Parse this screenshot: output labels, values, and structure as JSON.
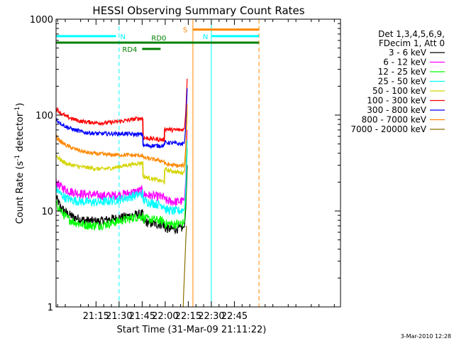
{
  "chart_data": {
    "type": "line",
    "title": "HESSI Observing Summary Count Rates",
    "xlabel": "Start Time (31-Mar-09 21:11:22)",
    "ylabel": "Count Rate (s⁻¹ detector⁻¹)",
    "ylabel_main": "Count Rate (s",
    "ylabel_sup1": "-1",
    "ylabel_mid": " detector",
    "ylabel_sup2": "-1",
    "ylabel_end": ")",
    "yscale": "log",
    "ylim": [
      1,
      1000
    ],
    "xlim_min": [
      -131,
      54
    ],
    "y_ticks": [
      {
        "value": 1,
        "label": "1"
      },
      {
        "value": 10,
        "label": "10"
      },
      {
        "value": 100,
        "label": "100"
      },
      {
        "value": 1000,
        "label": "1000"
      }
    ],
    "x_ticks": [
      {
        "min": -105,
        "label": "21:15"
      },
      {
        "min": -90,
        "label": "21:30"
      },
      {
        "min": -75,
        "label": "21:45"
      },
      {
        "min": -60,
        "label": "22:00"
      },
      {
        "min": -45,
        "label": "22:15"
      },
      {
        "min": -30,
        "label": "22:30"
      },
      {
        "min": -15,
        "label": "22:45"
      }
    ],
    "legend": {
      "placement": "right",
      "header": [
        "Det 1,3,4,5,6,9,",
        "FDecim 1, Att 0"
      ]
    },
    "series": [
      {
        "name": "3 - 6 keV",
        "color": "#000000",
        "x": [
          -131,
          -128,
          -124,
          -120,
          -116,
          -112,
          -108,
          -104,
          -100,
          -95,
          -90,
          -85,
          -80,
          -74.5,
          -74.5,
          -70,
          -65,
          -60.5,
          -60.5,
          -55,
          -50,
          -47.5,
          -46.6,
          -45.7
        ],
        "y": [
          14,
          11,
          9.5,
          8.7,
          8.3,
          8,
          7.9,
          7.8,
          8,
          8.3,
          8.5,
          8.8,
          9.1,
          9.4,
          7.8,
          7.5,
          7.3,
          7.2,
          6.6,
          6.5,
          6.6,
          6.8,
          11,
          30
        ]
      },
      {
        "name": "6 - 12 keV",
        "color": "#ff00ff",
        "x": [
          -131,
          -128,
          -124,
          -120,
          -116,
          -112,
          -108,
          -104,
          -100,
          -95,
          -90,
          -85,
          -80,
          -74.5,
          -74.5,
          -70,
          -65,
          -60.5,
          -60.5,
          -55,
          -50,
          -47.5,
          -46.6,
          -45.7
        ],
        "y": [
          20,
          18,
          16.5,
          15.8,
          15.3,
          15,
          14.8,
          14.6,
          14.5,
          14.5,
          14.8,
          15.2,
          15.8,
          16.5,
          15,
          14.5,
          14.2,
          14,
          13,
          12.5,
          12.6,
          13,
          22,
          70
        ]
      },
      {
        "name": "12 - 25 keV",
        "color": "#00ff00",
        "x": [
          -131,
          -128,
          -124,
          -120,
          -116,
          -112,
          -108,
          -104,
          -100,
          -95,
          -90,
          -85,
          -80,
          -74.5,
          -74.5,
          -70,
          -65,
          -60.5,
          -60.5,
          -55,
          -50,
          -47.5,
          -46.6,
          -45.7
        ],
        "y": [
          12,
          10,
          8.5,
          7.8,
          7.4,
          7.2,
          7.1,
          7.1,
          7.2,
          7.5,
          7.9,
          8.2,
          8.6,
          8.9,
          8.4,
          8.2,
          8,
          7.9,
          7.4,
          7.3,
          7.4,
          7.6,
          14,
          45
        ]
      },
      {
        "name": "25 - 50 keV",
        "color": "#00ffff",
        "x": [
          -131,
          -128,
          -124,
          -120,
          -116,
          -112,
          -108,
          -104,
          -100,
          -95,
          -90,
          -85,
          -80,
          -74.5,
          -74.5,
          -70,
          -65,
          -60.5,
          -60.5,
          -55,
          -50,
          -47.5,
          -46.6,
          -45.7
        ],
        "y": [
          17,
          15,
          13.5,
          13,
          12.7,
          12.5,
          12.4,
          12.4,
          12.5,
          12.8,
          13.2,
          13.8,
          14.5,
          15.2,
          13,
          12.3,
          11.8,
          11.5,
          10.5,
          10,
          10.1,
          10.4,
          18,
          55
        ]
      },
      {
        "name": "50 - 100 keV",
        "color": "#d4d400",
        "x": [
          -131,
          -128,
          -124,
          -120,
          -116,
          -112,
          -108,
          -104,
          -100,
          -95,
          -90,
          -85,
          -80,
          -74.5,
          -74.5,
          -70,
          -65,
          -60.5,
          -60.5,
          -55,
          -50,
          -47.5,
          -46.6,
          -45.7
        ],
        "y": [
          38,
          34,
          31,
          30,
          29,
          28.5,
          28,
          27.5,
          27.5,
          28,
          29,
          30,
          31,
          32,
          23,
          22,
          21,
          20,
          27,
          26,
          25,
          25.5,
          38,
          110
        ]
      },
      {
        "name": "100 - 300 keV",
        "color": "#ff0000",
        "x": [
          -131,
          -128,
          -124,
          -120,
          -116,
          -112,
          -108,
          -104,
          -100,
          -95,
          -90,
          -85,
          -80,
          -74.5,
          -74.5,
          -70,
          -65,
          -60.5,
          -60.5,
          -55,
          -50,
          -47.5,
          -46.6,
          -45.7
        ],
        "y": [
          118,
          105,
          96,
          91,
          87,
          85,
          84,
          83,
          83,
          84,
          86,
          88,
          91,
          93,
          58,
          57,
          56,
          55,
          72,
          70,
          70,
          72,
          110,
          240
        ]
      },
      {
        "name": "300 - 800 keV",
        "color": "#0000ff",
        "x": [
          -131,
          -128,
          -124,
          -120,
          -116,
          -112,
          -108,
          -104,
          -100,
          -95,
          -90,
          -85,
          -80,
          -74.5,
          -74.5,
          -70,
          -65,
          -60.5,
          -60.5,
          -55,
          -50,
          -47.5,
          -46.6,
          -45.7
        ],
        "y": [
          90,
          82,
          75,
          71,
          68,
          66,
          65,
          64,
          64,
          64,
          64,
          64,
          63,
          63,
          48,
          48,
          48,
          48,
          52,
          51,
          50,
          51,
          80,
          190
        ]
      },
      {
        "name": "800 - 7000 keV",
        "color": "#ff8800",
        "x": [
          -131,
          -128,
          -124,
          -120,
          -116,
          -112,
          -108,
          -104,
          -100,
          -95,
          -90,
          -85,
          -80,
          -74.5,
          -74.5,
          -70,
          -65,
          -60.5,
          -60.5,
          -55,
          -50,
          -47.5,
          -46.6,
          -45.7
        ],
        "y": [
          60,
          53,
          48,
          45,
          43,
          41,
          40,
          39.5,
          39,
          38.5,
          38.5,
          38.5,
          38,
          38,
          36,
          35,
          34,
          33,
          31,
          30,
          29.5,
          30,
          48,
          130
        ]
      },
      {
        "name": "7000 - 20000 keV",
        "color": "#8b7000",
        "x": [
          -48.3,
          -48.1,
          -47.6,
          -47.1,
          -46.6,
          -46.1
        ],
        "y": [
          1,
          1.3,
          2,
          3.2,
          5,
          7
        ]
      }
    ],
    "annotations": [
      {
        "label": "N",
        "color": "#00ffff",
        "y": 665,
        "x_start": -131,
        "x_end": -92
      },
      {
        "label": "N",
        "color": "#00ffff",
        "y": 665,
        "x_start": -30,
        "x_end": 1
      },
      {
        "label": "S",
        "color": "#ff8800",
        "y": 780,
        "x_start": -42,
        "x_end": 1
      },
      {
        "label": "RD0",
        "color": "#008000",
        "y": 570,
        "x_start": -131,
        "x_end": 1
      },
      {
        "label": "RD4",
        "color": "#008000",
        "y": 490,
        "x_start": -75,
        "x_end": -63
      }
    ],
    "vertical_markers": [
      {
        "min": -90,
        "color": "#00ffff",
        "style": "dashed"
      },
      {
        "min": -42,
        "color": "#ff8800",
        "style": "solid"
      },
      {
        "min": -30,
        "color": "#00ffff",
        "style": "solid"
      },
      {
        "min": 1,
        "color": "#ff8800",
        "style": "dashed"
      }
    ],
    "footer_date": "3-Mar-2010 12:28"
  }
}
